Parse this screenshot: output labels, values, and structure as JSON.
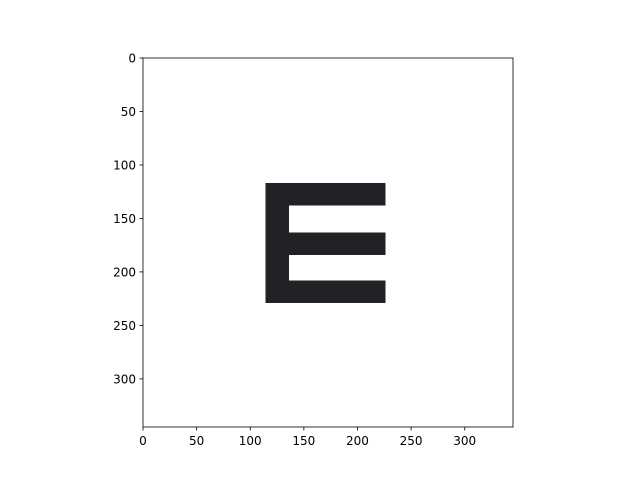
{
  "chart_data": {
    "type": "image",
    "xlim": [
      0,
      345
    ],
    "ylim": [
      345,
      0
    ],
    "y_axis_inverted": true,
    "grid": false,
    "xticks": [
      0,
      50,
      100,
      150,
      200,
      250,
      300
    ],
    "yticks": [
      0,
      50,
      100,
      150,
      200,
      250,
      300
    ],
    "xtick_labels": [
      "0",
      "50",
      "100",
      "150",
      "200",
      "250",
      "300"
    ],
    "ytick_labels": [
      "0",
      "50",
      "100",
      "150",
      "200",
      "250",
      "300"
    ],
    "colors": {
      "background": "#ffffff",
      "glyph": "#222226",
      "axes": "#000000"
    },
    "image_regions": [
      {
        "name": "glyph-e-spine",
        "x0": 114,
        "x1": 136,
        "y0": 117,
        "y1": 229
      },
      {
        "name": "glyph-e-top-bar",
        "x0": 114,
        "x1": 226,
        "y0": 117,
        "y1": 138
      },
      {
        "name": "glyph-e-middle-bar",
        "x0": 114,
        "x1": 226,
        "y0": 163,
        "y1": 184
      },
      {
        "name": "glyph-e-bottom-bar",
        "x0": 114,
        "x1": 226,
        "y0": 208,
        "y1": 229
      }
    ]
  }
}
